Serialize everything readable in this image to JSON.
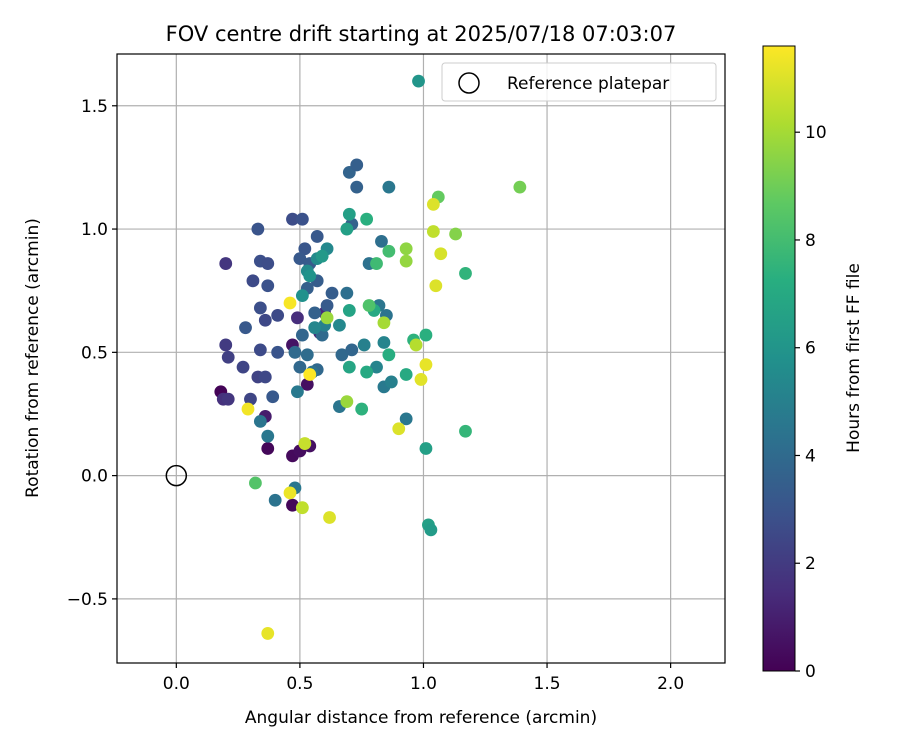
{
  "chart_data": {
    "type": "scatter",
    "title": "FOV centre drift starting at 2025/07/18 07:03:07",
    "xlabel": "Angular distance from reference (arcmin)",
    "ylabel": "Rotation from reference (arcmin)",
    "xlim": [
      -0.24,
      2.22
    ],
    "ylim": [
      -0.76,
      1.71
    ],
    "xticks": [
      "0.0",
      "0.5",
      "1.0",
      "1.5",
      "2.0"
    ],
    "yticks": [
      "−0.5",
      "0.0",
      "0.5",
      "1.0",
      "1.5"
    ],
    "grid": true,
    "legend": {
      "placement": "top-right",
      "entries": [
        "Reference platepar"
      ]
    },
    "colorbar": {
      "label": "Hours from first FF file",
      "min": 0,
      "max": 11.6,
      "ticks": [
        "0",
        "2",
        "4",
        "6",
        "8",
        "10"
      ],
      "colormap": "viridis"
    },
    "reference_point": {
      "x": 0.0,
      "y": 0.0
    },
    "points": [
      {
        "x": 0.18,
        "y": 0.34,
        "h": 0.1
      },
      {
        "x": 0.37,
        "y": 0.11,
        "h": 0.2
      },
      {
        "x": 0.47,
        "y": 0.08,
        "h": 0.3
      },
      {
        "x": 0.47,
        "y": -0.12,
        "h": 0.2
      },
      {
        "x": 0.5,
        "y": 0.1,
        "h": 0.4
      },
      {
        "x": 0.54,
        "y": 0.12,
        "h": 0.5
      },
      {
        "x": 0.53,
        "y": 0.37,
        "h": 0.5
      },
      {
        "x": 0.47,
        "y": 0.53,
        "h": 0.6
      },
      {
        "x": 0.36,
        "y": 0.24,
        "h": 0.9
      },
      {
        "x": 0.58,
        "y": 0.58,
        "h": 1.3
      },
      {
        "x": 0.49,
        "y": 0.64,
        "h": 1.5
      },
      {
        "x": 0.6,
        "y": 0.66,
        "h": 1.4
      },
      {
        "x": 0.19,
        "y": 0.31,
        "h": 1.6
      },
      {
        "x": 0.21,
        "y": 0.31,
        "h": 1.8
      },
      {
        "x": 0.2,
        "y": 0.53,
        "h": 2.0
      },
      {
        "x": 0.2,
        "y": 0.86,
        "h": 1.8
      },
      {
        "x": 0.21,
        "y": 0.48,
        "h": 2.2
      },
      {
        "x": 0.27,
        "y": 0.44,
        "h": 2.4
      },
      {
        "x": 0.3,
        "y": 0.31,
        "h": 2.4
      },
      {
        "x": 0.33,
        "y": 0.4,
        "h": 2.3
      },
      {
        "x": 0.36,
        "y": 0.4,
        "h": 2.5
      },
      {
        "x": 0.34,
        "y": 0.51,
        "h": 2.6
      },
      {
        "x": 0.36,
        "y": 0.63,
        "h": 2.5
      },
      {
        "x": 0.34,
        "y": 0.68,
        "h": 2.8
      },
      {
        "x": 0.31,
        "y": 0.79,
        "h": 2.6
      },
      {
        "x": 0.34,
        "y": 0.87,
        "h": 2.8
      },
      {
        "x": 0.37,
        "y": 0.86,
        "h": 2.7
      },
      {
        "x": 0.37,
        "y": 0.77,
        "h": 2.9
      },
      {
        "x": 0.33,
        "y": 1.0,
        "h": 3.0
      },
      {
        "x": 0.47,
        "y": 1.04,
        "h": 2.7
      },
      {
        "x": 0.51,
        "y": 1.04,
        "h": 2.9
      },
      {
        "x": 0.41,
        "y": 0.65,
        "h": 2.6
      },
      {
        "x": 0.41,
        "y": 0.5,
        "h": 3.0
      },
      {
        "x": 0.39,
        "y": 0.32,
        "h": 3.2
      },
      {
        "x": 0.28,
        "y": 0.6,
        "h": 3.2
      },
      {
        "x": 0.52,
        "y": 0.92,
        "h": 3.1
      },
      {
        "x": 0.5,
        "y": 0.88,
        "h": 3.2
      },
      {
        "x": 0.54,
        "y": 0.86,
        "h": 3.3
      },
      {
        "x": 0.57,
        "y": 0.97,
        "h": 3.2
      },
      {
        "x": 0.57,
        "y": 0.79,
        "h": 3.4
      },
      {
        "x": 0.53,
        "y": 0.76,
        "h": 3.5
      },
      {
        "x": 0.56,
        "y": 0.66,
        "h": 3.6
      },
      {
        "x": 0.63,
        "y": 0.74,
        "h": 3.4
      },
      {
        "x": 0.61,
        "y": 0.69,
        "h": 3.3
      },
      {
        "x": 0.7,
        "y": 1.23,
        "h": 3.7
      },
      {
        "x": 0.73,
        "y": 1.26,
        "h": 3.5
      },
      {
        "x": 0.73,
        "y": 1.17,
        "h": 3.6
      },
      {
        "x": 0.71,
        "y": 1.02,
        "h": 3.6
      },
      {
        "x": 0.86,
        "y": 1.17,
        "h": 4.6
      },
      {
        "x": 0.83,
        "y": 0.95,
        "h": 4.2
      },
      {
        "x": 0.85,
        "y": 0.65,
        "h": 4.4
      },
      {
        "x": 0.82,
        "y": 0.69,
        "h": 4.5
      },
      {
        "x": 0.78,
        "y": 0.86,
        "h": 4.3
      },
      {
        "x": 0.69,
        "y": 0.74,
        "h": 4.2
      },
      {
        "x": 0.67,
        "y": 0.49,
        "h": 3.9
      },
      {
        "x": 0.71,
        "y": 0.51,
        "h": 3.8
      },
      {
        "x": 0.59,
        "y": 0.57,
        "h": 4.0
      },
      {
        "x": 0.57,
        "y": 0.43,
        "h": 3.9
      },
      {
        "x": 0.51,
        "y": 0.57,
        "h": 3.8
      },
      {
        "x": 0.5,
        "y": 0.44,
        "h": 3.9
      },
      {
        "x": 0.48,
        "y": 0.5,
        "h": 4.0
      },
      {
        "x": 0.53,
        "y": 0.49,
        "h": 4.1
      },
      {
        "x": 0.55,
        "y": 0.42,
        "h": 4.3
      },
      {
        "x": 0.34,
        "y": 0.22,
        "h": 4.5
      },
      {
        "x": 0.37,
        "y": 0.16,
        "h": 4.6
      },
      {
        "x": 0.4,
        "y": -0.1,
        "h": 4.4
      },
      {
        "x": 0.48,
        "y": -0.05,
        "h": 4.6
      },
      {
        "x": 0.49,
        "y": 0.34,
        "h": 4.7
      },
      {
        "x": 0.66,
        "y": 0.28,
        "h": 4.5
      },
      {
        "x": 0.93,
        "y": 0.23,
        "h": 4.6
      },
      {
        "x": 0.84,
        "y": 0.36,
        "h": 4.7
      },
      {
        "x": 0.87,
        "y": 0.38,
        "h": 5.0
      },
      {
        "x": 0.81,
        "y": 0.44,
        "h": 5.2
      },
      {
        "x": 0.84,
        "y": 0.54,
        "h": 5.2
      },
      {
        "x": 0.76,
        "y": 0.53,
        "h": 5.0
      },
      {
        "x": 0.66,
        "y": 0.61,
        "h": 5.4
      },
      {
        "x": 0.6,
        "y": 0.61,
        "h": 5.0
      },
      {
        "x": 0.56,
        "y": 0.6,
        "h": 5.3
      },
      {
        "x": 0.53,
        "y": 0.83,
        "h": 5.5
      },
      {
        "x": 0.57,
        "y": 0.88,
        "h": 5.5
      },
      {
        "x": 0.61,
        "y": 0.92,
        "h": 5.4
      },
      {
        "x": 0.51,
        "y": 0.73,
        "h": 5.8
      },
      {
        "x": 0.54,
        "y": 0.81,
        "h": 5.9
      },
      {
        "x": 0.59,
        "y": 0.89,
        "h": 6.2
      },
      {
        "x": 0.69,
        "y": 1.0,
        "h": 6.5
      },
      {
        "x": 0.7,
        "y": 1.06,
        "h": 6.5
      },
      {
        "x": 0.7,
        "y": 0.67,
        "h": 6.7
      },
      {
        "x": 0.7,
        "y": 0.44,
        "h": 6.8
      },
      {
        "x": 0.77,
        "y": 0.42,
        "h": 7.0
      },
      {
        "x": 0.8,
        "y": 0.67,
        "h": 7.0
      },
      {
        "x": 0.77,
        "y": 1.04,
        "h": 7.3
      },
      {
        "x": 0.86,
        "y": 0.49,
        "h": 7.2
      },
      {
        "x": 0.75,
        "y": 0.27,
        "h": 7.4
      },
      {
        "x": 0.93,
        "y": 0.41,
        "h": 7.0
      },
      {
        "x": 0.96,
        "y": 0.55,
        "h": 7.4
      },
      {
        "x": 1.01,
        "y": 0.57,
        "h": 7.3
      },
      {
        "x": 1.01,
        "y": 0.11,
        "h": 6.5
      },
      {
        "x": 1.02,
        "y": -0.2,
        "h": 6.5
      },
      {
        "x": 1.03,
        "y": -0.22,
        "h": 6.3
      },
      {
        "x": 0.98,
        "y": 1.6,
        "h": 6.0
      },
      {
        "x": 1.17,
        "y": 0.82,
        "h": 7.5
      },
      {
        "x": 1.17,
        "y": 0.18,
        "h": 7.6
      },
      {
        "x": 0.81,
        "y": 0.86,
        "h": 7.9
      },
      {
        "x": 0.86,
        "y": 0.91,
        "h": 8.0
      },
      {
        "x": 0.78,
        "y": 0.69,
        "h": 8.3
      },
      {
        "x": 0.32,
        "y": -0.03,
        "h": 8.4
      },
      {
        "x": 1.06,
        "y": 1.13,
        "h": 8.8
      },
      {
        "x": 1.39,
        "y": 1.17,
        "h": 9.1
      },
      {
        "x": 1.13,
        "y": 0.98,
        "h": 9.4
      },
      {
        "x": 0.93,
        "y": 0.92,
        "h": 9.6
      },
      {
        "x": 0.93,
        "y": 0.87,
        "h": 9.7
      },
      {
        "x": 0.84,
        "y": 0.62,
        "h": 10.0
      },
      {
        "x": 0.61,
        "y": 0.64,
        "h": 9.8
      },
      {
        "x": 0.69,
        "y": 0.3,
        "h": 9.8
      },
      {
        "x": 0.97,
        "y": 0.53,
        "h": 10.3
      },
      {
        "x": 1.04,
        "y": 0.99,
        "h": 10.5
      },
      {
        "x": 1.04,
        "y": 1.1,
        "h": 11.0
      },
      {
        "x": 1.07,
        "y": 0.9,
        "h": 10.9
      },
      {
        "x": 1.05,
        "y": 0.77,
        "h": 11.0
      },
      {
        "x": 1.01,
        "y": 0.45,
        "h": 11.2
      },
      {
        "x": 0.99,
        "y": 0.39,
        "h": 11.1
      },
      {
        "x": 0.9,
        "y": 0.19,
        "h": 11.0
      },
      {
        "x": 0.52,
        "y": 0.13,
        "h": 10.6
      },
      {
        "x": 0.51,
        "y": -0.13,
        "h": 10.5
      },
      {
        "x": 0.62,
        "y": -0.17,
        "h": 11.0
      },
      {
        "x": 0.46,
        "y": -0.07,
        "h": 11.3
      },
      {
        "x": 0.37,
        "y": -0.64,
        "h": 11.2
      },
      {
        "x": 0.29,
        "y": 0.27,
        "h": 11.4
      },
      {
        "x": 0.46,
        "y": 0.7,
        "h": 11.5
      },
      {
        "x": 0.54,
        "y": 0.41,
        "h": 11.6
      }
    ]
  }
}
